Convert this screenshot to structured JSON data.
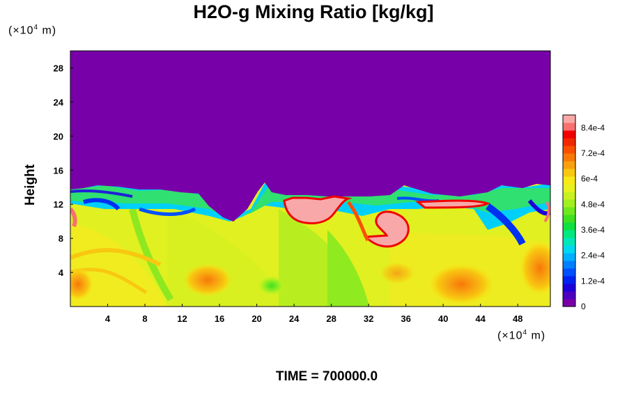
{
  "title": "H2O-g Mixing Ratio [kg/kg]",
  "y_unit": "(×10",
  "y_unit_exp": "4",
  "y_unit_tail": " m)",
  "x_unit": "(×10",
  "x_unit_exp": "4",
  "x_unit_tail": " m)",
  "ylabel": "Height",
  "time_label": "TIME = 700000.0",
  "chart_data": {
    "type": "heatmap",
    "title": "H2O-g Mixing Ratio [kg/kg]",
    "xlabel": "",
    "ylabel": "Height",
    "xlim": [
      0,
      51.5
    ],
    "ylim": [
      0,
      30
    ],
    "x_ticks": [
      4,
      8,
      12,
      16,
      20,
      24,
      28,
      32,
      36,
      40,
      44,
      48
    ],
    "y_ticks": [
      4,
      8,
      12,
      16,
      20,
      24,
      28
    ],
    "colorbar": {
      "range": [
        0,
        0.0009
      ],
      "tick_values": [
        0,
        0.00012,
        0.00024,
        0.00036,
        0.00048,
        0.0006,
        0.00072,
        0.00084
      ],
      "tick_labels": [
        "0",
        "1.2e-4",
        "2.4e-4",
        "3.6e-4",
        "4.8e-4",
        "6e-4",
        "7.2e-4",
        "8.4e-4"
      ],
      "colors": [
        "#7800a8",
        "#4c00c0",
        "#1c00d8",
        "#0022f0",
        "#0050ff",
        "#0080ff",
        "#00b0ff",
        "#00d8f0",
        "#00e8b8",
        "#00e880",
        "#10e040",
        "#40e020",
        "#70e820",
        "#a0f020",
        "#c8f020",
        "#e8f020",
        "#f8e818",
        "#f8c810",
        "#f8a010",
        "#f87808",
        "#f85000",
        "#f02800",
        "#f00000",
        "#f87070",
        "#f8a8a8"
      ]
    },
    "features": {
      "moist_layer_top_typical": 13.5,
      "dry_upper_value": 0,
      "description_values": [
        {
          "x": 41.5,
          "y": 2.3,
          "value": 0.00072
        },
        {
          "x": 14.5,
          "y": 3.0,
          "value": 0.0007
        },
        {
          "x": 21.5,
          "y": 2.2,
          "value": 0.00048
        },
        {
          "x": 26.0,
          "y": 10.8,
          "value": 0.0009
        },
        {
          "x": 34.0,
          "y": 8.2,
          "value": 0.0009
        },
        {
          "x": 43.0,
          "y": 12.2,
          "value": 0.00088
        }
      ]
    }
  }
}
